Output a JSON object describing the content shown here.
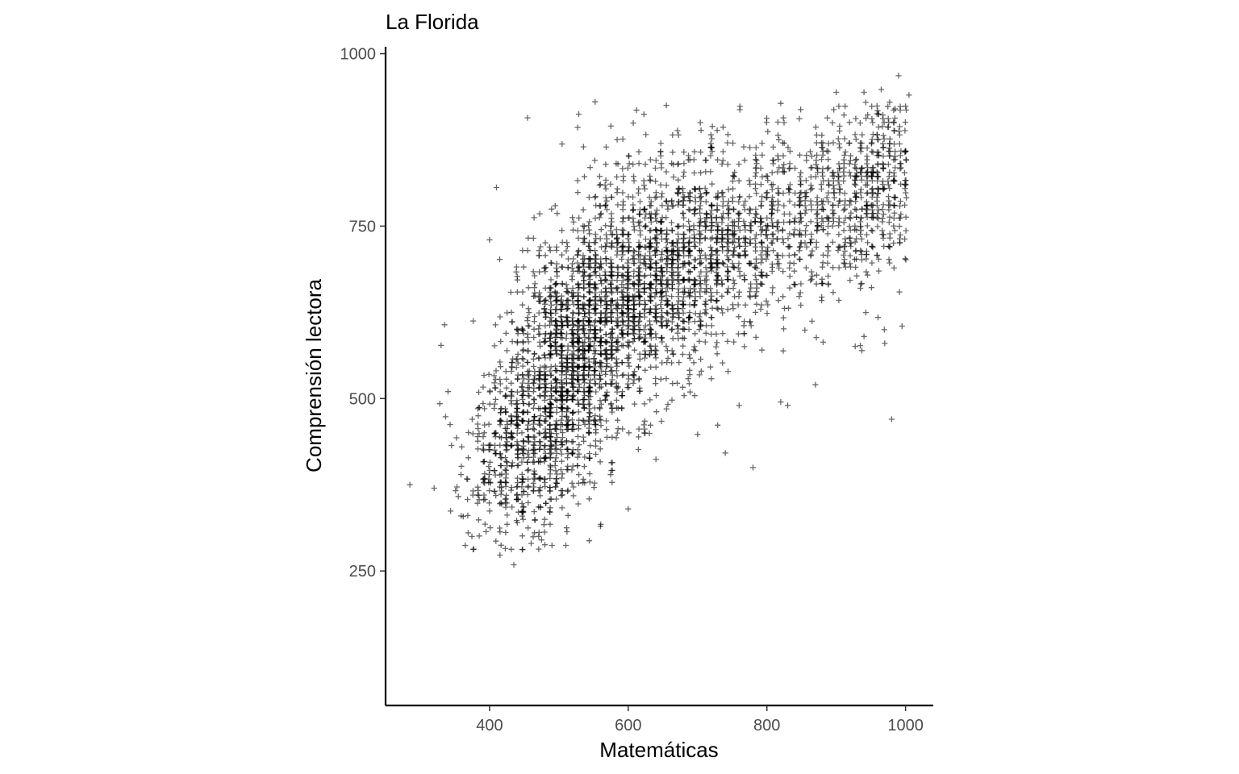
{
  "chart_data": {
    "type": "scatter",
    "title": "La Florida",
    "xlabel": "Matemáticas",
    "ylabel": "Comprensión lectora",
    "xlim": [
      250,
      1040
    ],
    "ylim": [
      55,
      1010
    ],
    "x_ticks": [
      400,
      600,
      800,
      1000
    ],
    "x_tick_labels": [
      "400",
      "600",
      "800",
      "1000"
    ],
    "y_ticks": [
      250,
      500,
      750,
      1000
    ],
    "y_tick_labels": [
      "250",
      "500",
      "750",
      "1000"
    ],
    "grid": false,
    "legend": "none",
    "marker": "plus",
    "point_color": "#000000",
    "point_alpha": 0.6,
    "n_points": 4200,
    "series": [
      {
        "clusters": [
          {
            "cx": 440,
            "cy": 430,
            "sx": 40,
            "sy": 70,
            "r": 0.2,
            "w": 0.1
          },
          {
            "cx": 510,
            "cy": 500,
            "sx": 45,
            "sy": 90,
            "r": 0.3,
            "w": 0.16
          },
          {
            "cx": 520,
            "cy": 620,
            "sx": 50,
            "sy": 70,
            "r": 0.3,
            "w": 0.12
          },
          {
            "cx": 600,
            "cy": 640,
            "sx": 55,
            "sy": 80,
            "r": 0.3,
            "w": 0.17
          },
          {
            "cx": 700,
            "cy": 690,
            "sx": 60,
            "sy": 75,
            "r": 0.4,
            "w": 0.15
          },
          {
            "cx": 830,
            "cy": 760,
            "sx": 70,
            "sy": 70,
            "r": 0.3,
            "w": 0.13
          },
          {
            "cx": 960,
            "cy": 810,
            "sx": 40,
            "sy": 75,
            "r": 0.2,
            "w": 0.11
          },
          {
            "cx": 640,
            "cy": 780,
            "sx": 70,
            "sy": 70,
            "r": 0.2,
            "w": 0.06
          }
        ],
        "outliers": [
          [
            285,
            375
          ],
          [
            320,
            370
          ],
          [
            330,
            577
          ],
          [
            335,
            607
          ],
          [
            340,
            510
          ],
          [
            345,
            432
          ],
          [
            355,
            358
          ],
          [
            360,
            430
          ],
          [
            362,
            329
          ],
          [
            365,
            287
          ],
          [
            375,
            470
          ],
          [
            395,
            307
          ],
          [
            400,
            730
          ],
          [
            410,
            806
          ],
          [
            415,
            273
          ],
          [
            435,
            259
          ],
          [
            460,
            290
          ],
          [
            475,
            295
          ],
          [
            490,
            287
          ],
          [
            510,
            287
          ],
          [
            527,
            893
          ],
          [
            545,
            835
          ],
          [
            575,
            895
          ],
          [
            612,
            918
          ],
          [
            640,
            412
          ],
          [
            655,
            925
          ],
          [
            700,
            448
          ],
          [
            740,
            421
          ],
          [
            820,
            928
          ],
          [
            900,
            944
          ],
          [
            940,
            944
          ],
          [
            965,
            948
          ],
          [
            970,
            580
          ],
          [
            990,
            968
          ],
          [
            995,
            605
          ],
          [
            1005,
            940
          ],
          [
            980,
            470
          ],
          [
            985,
            920
          ],
          [
            760,
            490
          ],
          [
            820,
            495
          ],
          [
            830,
            490
          ],
          [
            780,
            400
          ],
          [
            870,
            520
          ],
          [
            940,
            590
          ],
          [
            600,
            340
          ],
          [
            560,
            315
          ],
          [
            440,
            320
          ]
        ]
      }
    ]
  }
}
